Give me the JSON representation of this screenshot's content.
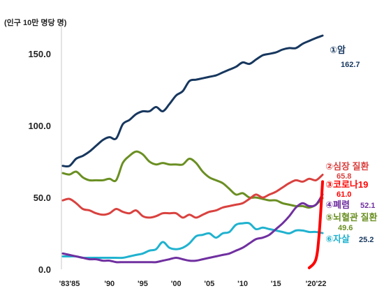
{
  "chart_data": {
    "type": "line",
    "unit_label": "(인구 10만 명당 명)",
    "x_tick_labels": [
      "'83'85",
      "'90",
      "'95",
      "'00",
      "'05",
      "'10",
      "'15",
      "'20'22"
    ],
    "x_tick_years": [
      1984,
      1990,
      1995,
      2000,
      2005,
      2010,
      2015,
      2021
    ],
    "y_ticks": [
      {
        "value": 0,
        "label": "0.0"
      },
      {
        "value": 50,
        "label": "50.0"
      },
      {
        "value": 100,
        "label": "100.0"
      },
      {
        "value": 150,
        "label": "150.0"
      }
    ],
    "xlim": [
      1983,
      2022
    ],
    "ylim": [
      0,
      170
    ],
    "series": [
      {
        "name": "①암",
        "value_label": "162.7",
        "color": "#17375e",
        "x": [
          1983,
          1984,
          1985,
          1986,
          1987,
          1988,
          1989,
          1990,
          1991,
          1992,
          1993,
          1994,
          1995,
          1996,
          1997,
          1998,
          1999,
          2000,
          2001,
          2002,
          2003,
          2004,
          2005,
          2006,
          2007,
          2008,
          2009,
          2010,
          2011,
          2012,
          2013,
          2014,
          2015,
          2016,
          2017,
          2018,
          2019,
          2020,
          2021,
          2022
        ],
        "y": [
          72,
          72,
          77,
          79,
          82,
          86,
          90,
          92,
          91,
          101,
          104,
          108,
          110,
          110,
          113,
          110,
          115,
          121,
          124,
          131,
          132,
          133,
          134,
          135,
          137,
          139,
          141,
          144,
          143,
          146,
          149,
          150,
          151,
          153,
          154,
          154,
          157,
          159,
          161,
          162.7
        ]
      },
      {
        "name": "②심장 질환",
        "value_label": "65.8",
        "color": "#d9423f",
        "x": [
          1983,
          1984,
          1985,
          1986,
          1987,
          1988,
          1989,
          1990,
          1991,
          1992,
          1993,
          1994,
          1995,
          1996,
          1997,
          1998,
          1999,
          2000,
          2001,
          2002,
          2003,
          2004,
          2005,
          2006,
          2007,
          2008,
          2009,
          2010,
          2011,
          2012,
          2013,
          2014,
          2015,
          2016,
          2017,
          2018,
          2019,
          2020,
          2021,
          2022
        ],
        "y": [
          48,
          49,
          46,
          42,
          41,
          39,
          38,
          39,
          42,
          40,
          39,
          41,
          37,
          36,
          37,
          39,
          39,
          39,
          36,
          38,
          36,
          38,
          40,
          41,
          43,
          44,
          45,
          46,
          49,
          52,
          50,
          52,
          54,
          57,
          60,
          62,
          61,
          63,
          62,
          65.8
        ]
      },
      {
        "name": "③코로나19",
        "value_label": "61.0",
        "color": "#ff0000",
        "x": [
          2020,
          2021,
          2021.5,
          2022
        ],
        "y": [
          1,
          7,
          25,
          61
        ]
      },
      {
        "name": "④폐렴",
        "value_label": "52.1",
        "color": "#7030a0",
        "x": [
          1983,
          1984,
          1985,
          1986,
          1987,
          1988,
          1989,
          1990,
          1991,
          1992,
          1993,
          1994,
          1995,
          1996,
          1997,
          1998,
          1999,
          2000,
          2001,
          2002,
          2003,
          2004,
          2005,
          2006,
          2007,
          2008,
          2009,
          2010,
          2011,
          2012,
          2013,
          2014,
          2015,
          2016,
          2017,
          2018,
          2019,
          2020,
          2021,
          2022
        ],
        "y": [
          11,
          10,
          9,
          8,
          7,
          7,
          6,
          6,
          5,
          5,
          5,
          5,
          5,
          5,
          5,
          6,
          7,
          8,
          7,
          6,
          6,
          7,
          8,
          9,
          10,
          11,
          13,
          15,
          18,
          21,
          22,
          24,
          28,
          32,
          37,
          43,
          46,
          44,
          45,
          52.1
        ]
      },
      {
        "name": "⑤뇌혈관 질환",
        "value_label": "49.6",
        "color": "#6a8f22",
        "x": [
          1983,
          1984,
          1985,
          1986,
          1987,
          1988,
          1989,
          1990,
          1991,
          1992,
          1993,
          1994,
          1995,
          1996,
          1997,
          1998,
          1999,
          2000,
          2001,
          2002,
          2003,
          2004,
          2005,
          2006,
          2007,
          2008,
          2009,
          2010,
          2011,
          2012,
          2013,
          2014,
          2015,
          2016,
          2017,
          2018,
          2019,
          2020,
          2021,
          2022
        ],
        "y": [
          67,
          66,
          68,
          64,
          62,
          62,
          62,
          63,
          62,
          74,
          79,
          82,
          80,
          75,
          73,
          74,
          73,
          73,
          73,
          77,
          74,
          68,
          64,
          62,
          60,
          56,
          52,
          53,
          50,
          50,
          49,
          48,
          48,
          46,
          45,
          44,
          44,
          43,
          45,
          49.6
        ]
      },
      {
        "name": "⑥자살",
        "value_label": "25.2",
        "color": "#20b2cf",
        "x": [
          1983,
          1984,
          1985,
          1986,
          1987,
          1988,
          1989,
          1990,
          1991,
          1992,
          1993,
          1994,
          1995,
          1996,
          1997,
          1998,
          1999,
          2000,
          2001,
          2002,
          2003,
          2004,
          2005,
          2006,
          2007,
          2008,
          2009,
          2010,
          2011,
          2012,
          2013,
          2014,
          2015,
          2016,
          2017,
          2018,
          2019,
          2020,
          2021,
          2022
        ],
        "y": [
          9,
          9,
          9,
          8,
          8,
          8,
          8,
          8,
          8,
          8,
          9,
          10,
          11,
          13,
          14,
          19,
          15,
          14,
          15,
          18,
          23,
          24,
          25,
          22,
          25,
          26,
          31,
          32,
          32,
          28,
          29,
          28,
          27,
          26,
          25,
          27,
          27,
          26,
          26,
          25.2
        ]
      }
    ]
  }
}
